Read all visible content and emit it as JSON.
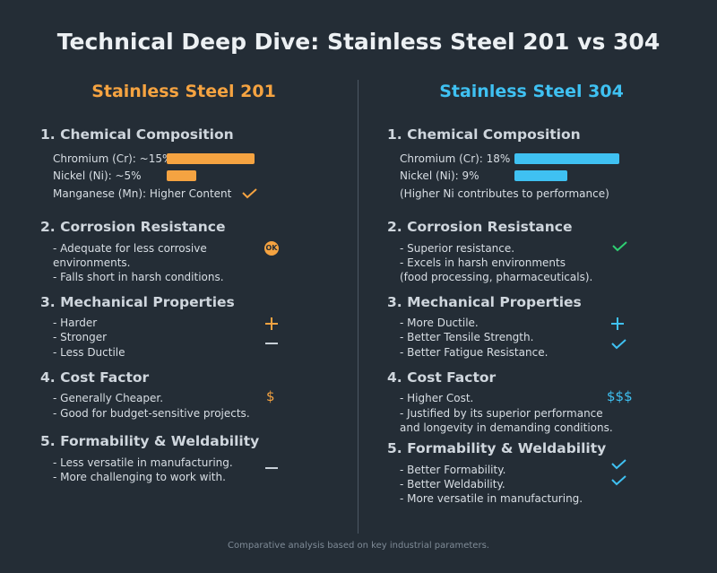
{
  "title": "Technical Deep Dive: Stainless Steel 201 vs 304",
  "colors": {
    "left_accent": "#f5a341",
    "right_accent": "#3fc1f2",
    "green": "#2ecf72",
    "bg": "#242d36"
  },
  "left": {
    "title": "Stainless Steel 201",
    "s1": {
      "heading": "1. Chemical Composition",
      "chromium": "Chromium (Cr): ~15%",
      "nickel": "Nickel (Ni): ~5%",
      "manganese": "Manganese (Mn): Higher Content",
      "chromium_pct": 15,
      "nickel_pct": 5
    },
    "s2": {
      "heading": "2. Corrosion Resistance",
      "l1": "- Adequate for less corrosive",
      "l2": "environments.",
      "l3": "- Falls short in harsh conditions.",
      "badge": "OK"
    },
    "s3": {
      "heading": "3. Mechanical Properties",
      "l1": "- Harder",
      "l2": "- Stronger",
      "l3": "- Less Ductile"
    },
    "s4": {
      "heading": "4. Cost Factor",
      "l1": "- Generally Cheaper.",
      "l2": "- Good for budget-sensitive projects.",
      "symbol": "$"
    },
    "s5": {
      "heading": "5. Formability & Weldability",
      "l1": "- Less versatile in manufacturing.",
      "l2": "- More challenging to work with."
    }
  },
  "right": {
    "title": "Stainless Steel 304",
    "s1": {
      "heading": "1. Chemical Composition",
      "chromium": "Chromium (Cr): 18%",
      "nickel": "Nickel (Ni): 9%",
      "note": "(Higher Ni contributes to performance)",
      "chromium_pct": 18,
      "nickel_pct": 9
    },
    "s2": {
      "heading": "2. Corrosion Resistance",
      "l1": "- Superior resistance.",
      "l2": "- Excels in harsh environments",
      "l3": "(food processing, pharmaceuticals)."
    },
    "s3": {
      "heading": "3. Mechanical Properties",
      "l1": "- More Ductile.",
      "l2": "- Better Tensile Strength.",
      "l3": "- Better Fatigue Resistance."
    },
    "s4": {
      "heading": "4. Cost Factor",
      "l1": "- Higher Cost.",
      "l2": "- Justified by its superior performance",
      "l3": "and longevity in demanding conditions.",
      "symbol": "$$$"
    },
    "s5": {
      "heading": "5. Formability & Weldability",
      "l1": "- Better Formability.",
      "l2": "- Better Weldability.",
      "l3": "- More versatile in manufacturing."
    }
  },
  "footer": "Comparative analysis based on key industrial parameters."
}
